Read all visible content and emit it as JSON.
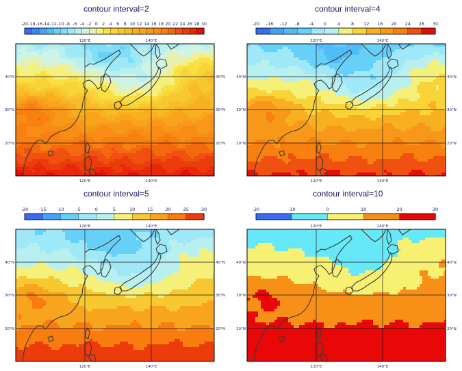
{
  "colors": {
    "ramp": [
      "#3a6cf0",
      "#3f86f5",
      "#46a2f8",
      "#52bcf8",
      "#66d0f8",
      "#82def8",
      "#9ee8f8",
      "#b8f0f0",
      "#e6f0b0",
      "#f4f07a",
      "#f8e040",
      "#f8c830",
      "#f8b020",
      "#f89818",
      "#f88010",
      "#f46810",
      "#f05010",
      "#ec3c0c",
      "#e82808",
      "#e01006",
      "#dc0000"
    ],
    "land_line": "#3a3a3a",
    "grid_line": "#1a1a1a",
    "label": "#1a1a60"
  },
  "map": {
    "lat_labels": [
      "40°N",
      "30°N",
      "20°N"
    ],
    "lon_labels": [
      "120°E",
      "140°E"
    ]
  },
  "panels": [
    {
      "id": "p1",
      "title": "contour interval=2",
      "ticks": [
        "-20",
        "-18",
        "-16",
        "-14",
        "-12",
        "-10",
        "-8",
        "-6",
        "-4",
        "-2",
        "0",
        "2",
        "4",
        "6",
        "8",
        "10",
        "12",
        "14",
        "16",
        "18",
        "20",
        "22",
        "24",
        "26",
        "28",
        "30"
      ],
      "bin_colors": [
        "#3a6cf0",
        "#3f86f5",
        "#46a2f8",
        "#52bcf8",
        "#66d0f8",
        "#82def8",
        "#9ee8f8",
        "#b8f0f0",
        "#d0f4e4",
        "#e6f0b0",
        "#f4f07a",
        "#f8e040",
        "#f8d438",
        "#f8c830",
        "#f8bc28",
        "#f8b020",
        "#f8a41c",
        "#f89818",
        "#f88c14",
        "#f88010",
        "#f46810",
        "#f05010",
        "#ec3c0c",
        "#e82808",
        "#e01006"
      ],
      "scale": 1
    },
    {
      "id": "p2",
      "title": "contour interval=4",
      "ticks": [
        "-20",
        "-16",
        "-12",
        "-8",
        "-4",
        "0",
        "4",
        "8",
        "12",
        "16",
        "20",
        "24",
        "28",
        "30"
      ],
      "bin_colors": [
        "#3a6cf0",
        "#46a2f8",
        "#52bcf8",
        "#66d0f8",
        "#9ee8f8",
        "#b8f0f0",
        "#f4f07a",
        "#f8d438",
        "#f8b020",
        "#f89818",
        "#f88010",
        "#f05010",
        "#e01006"
      ],
      "scale": 2
    },
    {
      "id": "p3",
      "title": "contour interval=5",
      "ticks": [
        "-20",
        "-15",
        "-10",
        "-5",
        "0",
        "5",
        "10",
        "15",
        "20",
        "25",
        "30"
      ],
      "bin_colors": [
        "#3a6cf0",
        "#46a2f8",
        "#66d0f8",
        "#9ee8f8",
        "#b8f0f0",
        "#f4f07a",
        "#f8c830",
        "#f8a41c",
        "#f87c10",
        "#ec3c0c"
      ],
      "scale": 3
    },
    {
      "id": "p4",
      "title": "contour interval=10",
      "ticks": [
        "-20",
        "-10",
        "0",
        "10",
        "20",
        "30"
      ],
      "bin_colors": [
        "#3a6cf0",
        "#66e8f8",
        "#f8f070",
        "#f89018",
        "#e80808"
      ],
      "scale": 4
    }
  ]
}
